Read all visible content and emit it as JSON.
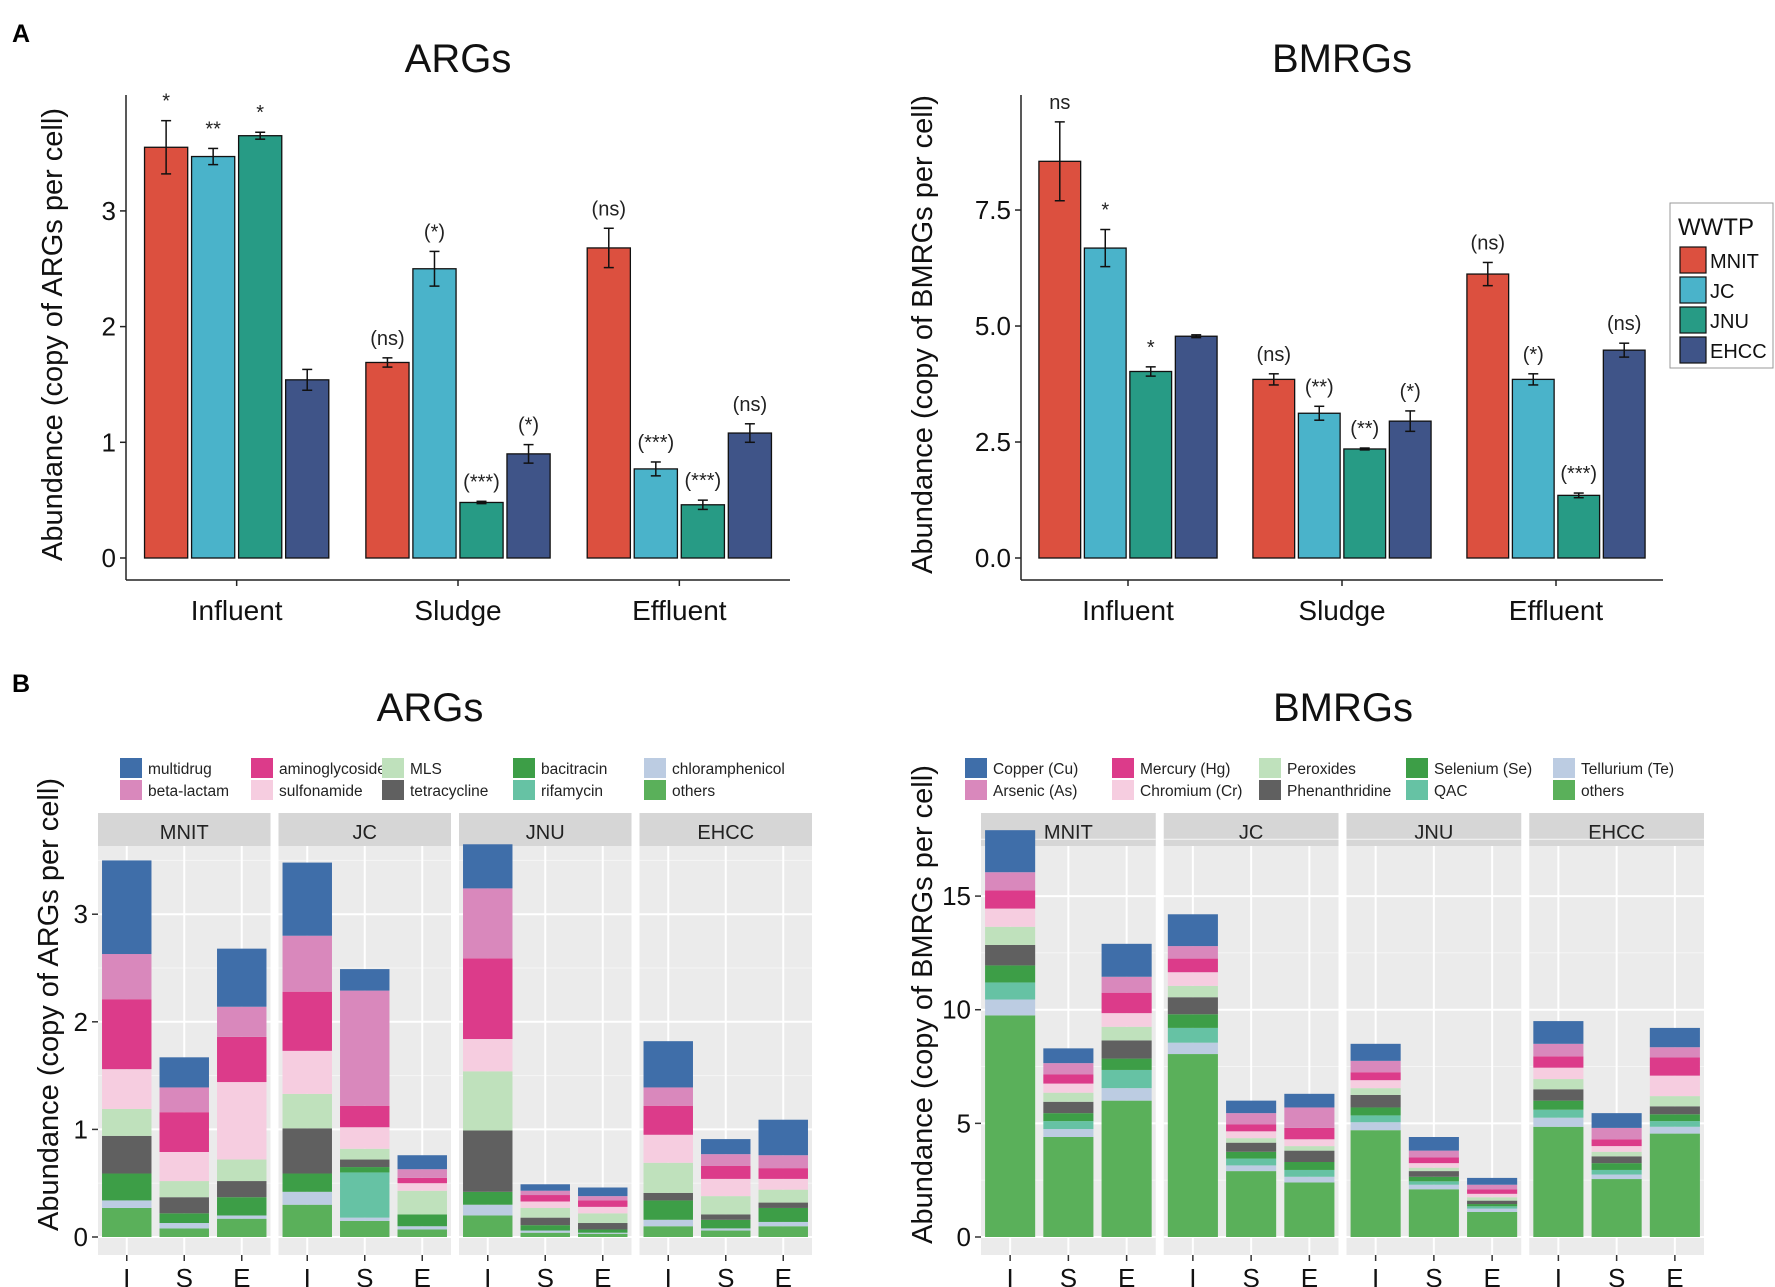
{
  "panel_labels": {
    "a": "A",
    "b": "B"
  },
  "chart_data": [
    {
      "id": "A_args",
      "type": "bar",
      "title": "ARGs",
      "ylabel": "Abundance (copy of ARGs per cell)",
      "xlabel": "",
      "ylim": [
        0,
        3.95
      ],
      "yticks": [
        "0",
        "1",
        "2",
        "3"
      ],
      "ytick_values": [
        0,
        1,
        2,
        3
      ],
      "categories": [
        "Influent",
        "Sludge",
        "Effluent"
      ],
      "series": [
        {
          "name": "MNIT",
          "color": "#DC503F",
          "values": [
            3.55,
            1.69,
            2.68
          ],
          "errors": [
            0.23,
            0.04,
            0.17
          ],
          "labels": [
            "*",
            "(ns)",
            "(ns)"
          ]
        },
        {
          "name": "JC",
          "color": "#4AB3CA",
          "values": [
            3.47,
            2.5,
            0.77
          ],
          "errors": [
            0.07,
            0.15,
            0.06
          ],
          "labels": [
            "**",
            "(*)",
            "(***)"
          ]
        },
        {
          "name": "JNU",
          "color": "#279B85",
          "values": [
            3.65,
            0.48,
            0.46
          ],
          "errors": [
            0.03,
            0.01,
            0.04
          ],
          "labels": [
            "*",
            "(***)",
            "(***)"
          ]
        },
        {
          "name": "EHCC",
          "color": "#3F5488",
          "values": [
            1.54,
            0.9,
            1.08
          ],
          "errors": [
            0.09,
            0.08,
            0.08
          ],
          "labels": [
            "",
            "(*)",
            "(ns)"
          ]
        }
      ]
    },
    {
      "id": "A_bmrgs",
      "type": "bar",
      "title": "BMRGs",
      "ylabel": "Abundance (copy of BMRGs per cell)",
      "xlabel": "",
      "ylim": [
        0,
        9.85
      ],
      "yticks": [
        "0.0",
        "2.5",
        "5.0",
        "7.5"
      ],
      "ytick_values": [
        0,
        2.5,
        5.0,
        7.5
      ],
      "categories": [
        "Influent",
        "Sludge",
        "Effluent"
      ],
      "series": [
        {
          "name": "MNIT",
          "color": "#DC503F",
          "values": [
            8.55,
            3.85,
            6.12
          ],
          "errors": [
            0.85,
            0.12,
            0.25
          ],
          "labels": [
            "ns",
            "(ns)",
            "(ns)"
          ]
        },
        {
          "name": "JC",
          "color": "#4AB3CA",
          "values": [
            6.68,
            3.12,
            3.85
          ],
          "errors": [
            0.4,
            0.15,
            0.12
          ],
          "labels": [
            "*",
            "(**)",
            "(*)"
          ]
        },
        {
          "name": "JNU",
          "color": "#279B85",
          "values": [
            4.02,
            2.35,
            1.35
          ],
          "errors": [
            0.1,
            0.02,
            0.05
          ],
          "labels": [
            "*",
            "(**)",
            "(***)"
          ]
        },
        {
          "name": "EHCC",
          "color": "#3F5488",
          "values": [
            4.78,
            2.95,
            4.48
          ],
          "errors": [
            0.03,
            0.22,
            0.15
          ],
          "labels": [
            "",
            "(*)",
            "(ns)"
          ]
        }
      ],
      "legend": {
        "title": "WWTP",
        "items": [
          "MNIT",
          "JC",
          "JNU",
          "EHCC"
        ],
        "position": "right"
      }
    },
    {
      "id": "B_args",
      "type": "bar",
      "stacked": true,
      "title": "ARGs",
      "ylabel": "Abundance (copy of ARGs per cell)",
      "ylim": [
        0,
        3.95
      ],
      "yticks": [
        "0",
        "1",
        "2",
        "3"
      ],
      "ytick_values": [
        0,
        1,
        2,
        3
      ],
      "facets": [
        "MNIT",
        "JC",
        "JNU",
        "EHCC"
      ],
      "categories": [
        "I",
        "S",
        "E"
      ],
      "classes": [
        {
          "name": "multidrug",
          "color": "#3F6EA9"
        },
        {
          "name": "beta-lactam",
          "color": "#D988BC"
        },
        {
          "name": "aminoglycoside",
          "color": "#DC3B8A"
        },
        {
          "name": "sulfonamide",
          "color": "#F6CDE0"
        },
        {
          "name": "MLS",
          "color": "#BFE1BC"
        },
        {
          "name": "tetracycline",
          "color": "#606060"
        },
        {
          "name": "bacitracin",
          "color": "#3D9E47"
        },
        {
          "name": "rifamycin",
          "color": "#66C2A4"
        },
        {
          "name": "chloramphenicol",
          "color": "#BCCCE2"
        },
        {
          "name": "others",
          "color": "#5AB05A"
        }
      ],
      "stack_order": [
        "others",
        "chloramphenicol",
        "rifamycin",
        "bacitracin",
        "tetracycline",
        "MLS",
        "sulfonamide",
        "aminoglycoside",
        "beta-lactam",
        "multidrug"
      ],
      "data": {
        "MNIT": {
          "I": [
            0.27,
            0.07,
            0.0,
            0.25,
            0.35,
            0.25,
            0.37,
            0.65,
            0.42,
            0.87
          ],
          "S": [
            0.08,
            0.05,
            0.0,
            0.09,
            0.15,
            0.15,
            0.27,
            0.37,
            0.23,
            0.28
          ],
          "E": [
            0.17,
            0.03,
            0.0,
            0.17,
            0.15,
            0.2,
            0.72,
            0.42,
            0.28,
            0.54
          ]
        },
        "JC": {
          "I": [
            0.3,
            0.12,
            0.0,
            0.17,
            0.42,
            0.32,
            0.4,
            0.55,
            0.52,
            0.68
          ],
          "S": [
            0.15,
            0.03,
            0.42,
            0.05,
            0.07,
            0.1,
            0.2,
            0.2,
            1.07,
            0.2
          ],
          "E": [
            0.07,
            0.03,
            0.0,
            0.11,
            0.0,
            0.22,
            0.07,
            0.05,
            0.08,
            0.13
          ]
        },
        "JNU": {
          "I": [
            0.2,
            0.1,
            0.0,
            0.12,
            0.57,
            0.55,
            0.3,
            0.75,
            0.65,
            0.41
          ],
          "S": [
            0.04,
            0.02,
            0.0,
            0.05,
            0.07,
            0.09,
            0.06,
            0.06,
            0.04,
            0.06
          ],
          "E": [
            0.03,
            0.01,
            0.0,
            0.03,
            0.06,
            0.09,
            0.06,
            0.06,
            0.04,
            0.08
          ]
        },
        "EHCC": {
          "I": [
            0.1,
            0.06,
            0.0,
            0.18,
            0.07,
            0.28,
            0.26,
            0.27,
            0.17,
            0.43
          ],
          "S": [
            0.06,
            0.02,
            0.0,
            0.08,
            0.05,
            0.17,
            0.16,
            0.12,
            0.11,
            0.14
          ],
          "E": [
            0.1,
            0.04,
            0.0,
            0.13,
            0.05,
            0.12,
            0.1,
            0.1,
            0.12,
            0.33
          ]
        }
      }
    },
    {
      "id": "B_bmrgs",
      "type": "bar",
      "stacked": true,
      "title": "BMRGs",
      "ylabel": "Abundance (copy of BMRGs per cell)",
      "ylim": [
        0,
        18.7
      ],
      "yticks": [
        "0",
        "5",
        "10",
        "15"
      ],
      "ytick_values": [
        0,
        5,
        10,
        15
      ],
      "facets": [
        "MNIT",
        "JC",
        "JNU",
        "EHCC"
      ],
      "categories": [
        "I",
        "S",
        "E"
      ],
      "classes": [
        {
          "name": "Copper (Cu)",
          "color": "#3F6EA9"
        },
        {
          "name": "Arsenic (As)",
          "color": "#D988BC"
        },
        {
          "name": "Mercury (Hg)",
          "color": "#DC3B8A"
        },
        {
          "name": "Chromium (Cr)",
          "color": "#F6CDE0"
        },
        {
          "name": "Peroxides",
          "color": "#BFE1BC"
        },
        {
          "name": "Phenanthridine",
          "color": "#606060"
        },
        {
          "name": "Selenium (Se)",
          "color": "#3D9E47"
        },
        {
          "name": "QAC",
          "color": "#66C2A4"
        },
        {
          "name": "Tellurium (Te)",
          "color": "#BCCCE2"
        },
        {
          "name": "others",
          "color": "#5AB05A"
        }
      ],
      "stack_order": [
        "others",
        "Tellurium (Te)",
        "QAC",
        "Selenium (Se)",
        "Phenanthridine",
        "Peroxides",
        "Chromium (Cr)",
        "Mercury (Hg)",
        "Arsenic (As)",
        "Copper (Cu)"
      ],
      "data": {
        "MNIT": {
          "I": [
            9.75,
            0.7,
            0.75,
            0.75,
            0.9,
            0.8,
            0.8,
            0.8,
            0.8,
            1.85
          ],
          "S": [
            4.4,
            0.35,
            0.35,
            0.35,
            0.5,
            0.4,
            0.4,
            0.4,
            0.5,
            0.65
          ],
          "E": [
            6.0,
            0.55,
            0.8,
            0.5,
            0.8,
            0.6,
            0.6,
            0.9,
            0.7,
            1.45
          ]
        },
        "JC": {
          "I": [
            8.05,
            0.5,
            0.65,
            0.6,
            0.75,
            0.5,
            0.6,
            0.6,
            0.55,
            1.4
          ],
          "S": [
            2.9,
            0.25,
            0.3,
            0.3,
            0.4,
            0.2,
            0.3,
            0.3,
            0.5,
            0.55
          ],
          "E": [
            2.4,
            0.25,
            0.3,
            0.35,
            0.5,
            0.2,
            0.3,
            0.5,
            0.9,
            0.6
          ]
        },
        "JNU": {
          "I": [
            4.7,
            0.35,
            0.3,
            0.35,
            0.55,
            0.3,
            0.35,
            0.35,
            0.5,
            0.75
          ],
          "S": [
            2.1,
            0.2,
            0.15,
            0.2,
            0.25,
            0.15,
            0.2,
            0.25,
            0.3,
            0.6
          ],
          "E": [
            1.1,
            0.15,
            0.1,
            0.1,
            0.15,
            0.15,
            0.15,
            0.2,
            0.2,
            0.3
          ]
        },
        "EHCC": {
          "I": [
            4.85,
            0.4,
            0.35,
            0.4,
            0.5,
            0.45,
            0.5,
            0.5,
            0.55,
            1.0
          ],
          "S": [
            2.55,
            0.2,
            0.2,
            0.3,
            0.3,
            0.2,
            0.25,
            0.3,
            0.5,
            0.65
          ],
          "E": [
            4.55,
            0.3,
            0.25,
            0.3,
            0.35,
            0.45,
            0.9,
            0.8,
            0.45,
            0.85
          ]
        }
      }
    }
  ]
}
